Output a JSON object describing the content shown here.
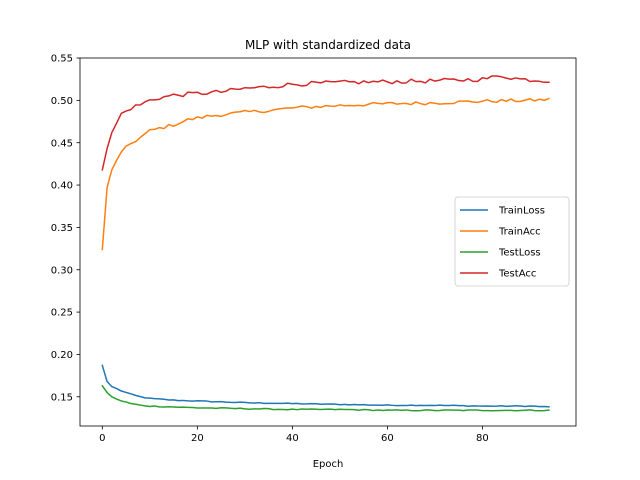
{
  "chart_data": {
    "type": "line",
    "title": "MLP with standardized data",
    "xlabel": "Epoch",
    "ylabel": "",
    "xlim": [
      -4.7,
      99.7
    ],
    "ylim": [
      0.1155,
      0.55
    ],
    "x_ticks": [
      0,
      20,
      40,
      60,
      80
    ],
    "y_ticks": [
      0.15,
      0.2,
      0.25,
      0.3,
      0.35,
      0.4,
      0.45,
      0.5,
      0.55
    ],
    "grid": false,
    "legend_position": "center-right",
    "n_points": 95,
    "series": [
      {
        "name": "TrainLoss",
        "color": "#1f77b4",
        "anchors": [
          [
            0,
            0.187
          ],
          [
            1,
            0.168
          ],
          [
            2,
            0.162
          ],
          [
            4,
            0.157
          ],
          [
            6,
            0.153
          ],
          [
            8,
            0.15
          ],
          [
            10,
            0.148
          ],
          [
            15,
            0.146
          ],
          [
            20,
            0.145
          ],
          [
            30,
            0.143
          ],
          [
            40,
            0.142
          ],
          [
            50,
            0.141
          ],
          [
            60,
            0.14
          ],
          [
            70,
            0.14
          ],
          [
            80,
            0.139
          ],
          [
            90,
            0.139
          ],
          [
            94,
            0.138
          ]
        ],
        "noise": 0.0005
      },
      {
        "name": "TrainAcc",
        "color": "#ff7f0e",
        "anchors": [
          [
            0,
            0.324
          ],
          [
            1,
            0.397
          ],
          [
            2,
            0.418
          ],
          [
            3,
            0.43
          ],
          [
            4,
            0.438
          ],
          [
            5,
            0.444
          ],
          [
            6,
            0.449
          ],
          [
            8,
            0.456
          ],
          [
            10,
            0.464
          ],
          [
            12,
            0.467
          ],
          [
            15,
            0.471
          ],
          [
            18,
            0.477
          ],
          [
            22,
            0.481
          ],
          [
            25,
            0.483
          ],
          [
            30,
            0.486
          ],
          [
            35,
            0.488
          ],
          [
            40,
            0.491
          ],
          [
            50,
            0.494
          ],
          [
            60,
            0.496
          ],
          [
            70,
            0.497
          ],
          [
            80,
            0.499
          ],
          [
            90,
            0.5
          ],
          [
            94,
            0.501
          ]
        ],
        "noise": 0.002
      },
      {
        "name": "TestLoss",
        "color": "#2ca02c",
        "anchors": [
          [
            0,
            0.163
          ],
          [
            1,
            0.155
          ],
          [
            2,
            0.15
          ],
          [
            4,
            0.145
          ],
          [
            6,
            0.142
          ],
          [
            8,
            0.14
          ],
          [
            10,
            0.139
          ],
          [
            15,
            0.138
          ],
          [
            20,
            0.137
          ],
          [
            30,
            0.136
          ],
          [
            40,
            0.135
          ],
          [
            50,
            0.135
          ],
          [
            60,
            0.134
          ],
          [
            70,
            0.134
          ],
          [
            80,
            0.134
          ],
          [
            90,
            0.134
          ],
          [
            94,
            0.134
          ]
        ],
        "noise": 0.0006
      },
      {
        "name": "TestAcc",
        "color": "#d62728",
        "anchors": [
          [
            0,
            0.418
          ],
          [
            1,
            0.443
          ],
          [
            2,
            0.462
          ],
          [
            3,
            0.473
          ],
          [
            4,
            0.484
          ],
          [
            5,
            0.487
          ],
          [
            6,
            0.491
          ],
          [
            8,
            0.495
          ],
          [
            10,
            0.5
          ],
          [
            12,
            0.503
          ],
          [
            15,
            0.506
          ],
          [
            20,
            0.508
          ],
          [
            25,
            0.51
          ],
          [
            30,
            0.514
          ],
          [
            35,
            0.516
          ],
          [
            40,
            0.519
          ],
          [
            50,
            0.521
          ],
          [
            60,
            0.522
          ],
          [
            70,
            0.523
          ],
          [
            80,
            0.525
          ],
          [
            84,
            0.529
          ],
          [
            88,
            0.525
          ],
          [
            94,
            0.523
          ]
        ],
        "noise": 0.0025
      }
    ]
  }
}
